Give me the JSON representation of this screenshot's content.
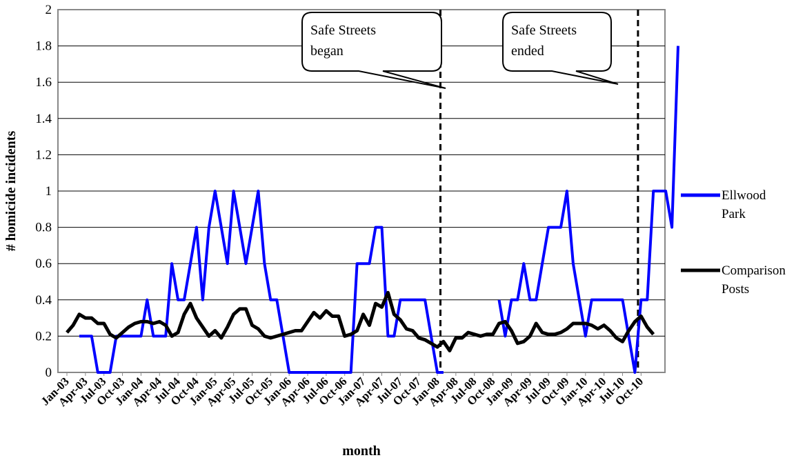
{
  "chart_data": {
    "type": "line",
    "title_fragment": "",
    "xlabel": "month",
    "ylabel": "# homicide incidents",
    "ylim": [
      0,
      2
    ],
    "yticks": [
      "0",
      "0.2",
      "0.4",
      "0.6",
      "0.8",
      "1",
      "1.2",
      "1.4",
      "1.6",
      "1.8",
      "2"
    ],
    "grid": "horizontal",
    "legend_position": "right",
    "x_tick_labels": [
      "Jan-03",
      "Apr-03",
      "Jul-03",
      "Oct-03",
      "Jan-04",
      "Apr-04",
      "Jul-04",
      "Oct-04",
      "Jan-05",
      "Apr-05",
      "Jul-05",
      "Oct-05",
      "Jan-06",
      "Apr-06",
      "Jul-06",
      "Oct-06",
      "Jan-07",
      "Apr-07",
      "Jul-07",
      "Oct-07",
      "Jan-08",
      "Apr-08",
      "Jul-08",
      "Oct-08",
      "Jan-09",
      "Apr-09",
      "Jul-09",
      "Oct-09",
      "Jan-10",
      "Apr-10",
      "Jul-10",
      "Oct-10"
    ],
    "series": [
      {
        "name": "Ellwood Park",
        "color": "#0000ff",
        "points": [
          [
            2,
            0.2
          ],
          [
            3,
            0.2
          ],
          [
            4,
            0.2
          ],
          [
            5,
            0
          ],
          [
            6,
            0
          ],
          [
            7,
            0
          ],
          [
            8,
            0.2
          ],
          [
            9,
            0.2
          ],
          [
            10,
            0.2
          ],
          [
            11,
            0.2
          ],
          [
            12,
            0.2
          ],
          [
            13,
            0.4
          ],
          [
            14,
            0.2
          ],
          [
            15,
            0.2
          ],
          [
            16,
            0.2
          ],
          [
            17,
            0.6
          ],
          [
            18,
            0.4
          ],
          [
            19,
            0.4
          ],
          [
            20,
            0.6
          ],
          [
            21,
            0.8
          ],
          [
            22,
            0.4
          ],
          [
            23,
            0.8
          ],
          [
            24,
            1.0
          ],
          [
            25,
            0.8
          ],
          [
            26,
            0.6
          ],
          [
            27,
            1.0
          ],
          [
            28,
            0.8
          ],
          [
            29,
            0.6
          ],
          [
            30,
            0.8
          ],
          [
            31,
            1.0
          ],
          [
            32,
            0.6
          ],
          [
            33,
            0.4
          ],
          [
            34,
            0.4
          ],
          [
            35,
            0.2
          ],
          [
            36,
            0
          ],
          [
            37,
            0
          ],
          [
            38,
            0
          ],
          [
            39,
            0
          ],
          [
            40,
            0
          ],
          [
            41,
            0
          ],
          [
            42,
            0
          ],
          [
            43,
            0
          ],
          [
            44,
            0
          ],
          [
            45,
            0
          ],
          [
            46,
            0
          ],
          [
            47,
            0.6
          ],
          [
            48,
            0.6
          ],
          [
            49,
            0.6
          ],
          [
            50,
            0.8
          ],
          [
            51,
            0.8
          ],
          [
            52,
            0.2
          ],
          [
            53,
            0.2
          ],
          [
            54,
            0.4
          ],
          [
            55,
            0.4
          ],
          [
            56,
            0.4
          ],
          [
            57,
            0.4
          ],
          [
            58,
            0.4
          ],
          [
            59,
            0.2
          ],
          [
            60,
            0
          ],
          [
            61,
            0
          ],
          [
            62,
            null
          ],
          [
            63,
            null
          ],
          [
            64,
            null
          ],
          [
            65,
            null
          ],
          [
            66,
            null
          ],
          [
            67,
            null
          ],
          [
            68,
            null
          ],
          [
            69,
            null
          ],
          [
            70,
            0.4
          ],
          [
            71,
            0.2
          ],
          [
            72,
            0.4
          ],
          [
            73,
            0.4
          ],
          [
            74,
            0.6
          ],
          [
            75,
            0.4
          ],
          [
            76,
            0.4
          ],
          [
            77,
            0.6
          ],
          [
            78,
            0.8
          ],
          [
            79,
            0.8
          ],
          [
            80,
            0.8
          ],
          [
            81,
            1.0
          ],
          [
            82,
            0.6
          ],
          [
            83,
            0.4
          ],
          [
            84,
            0.2
          ],
          [
            85,
            0.4
          ],
          [
            86,
            0.4
          ],
          [
            87,
            0.4
          ],
          [
            88,
            0.4
          ],
          [
            89,
            0.4
          ],
          [
            90,
            0.4
          ],
          [
            91,
            0.2
          ],
          [
            92,
            0
          ],
          [
            93,
            0.4
          ],
          [
            94,
            0.4
          ],
          [
            95,
            1.0
          ],
          [
            96,
            1.0
          ],
          [
            97,
            1.0
          ],
          [
            98,
            0.8
          ],
          [
            99,
            1.8
          ]
        ]
      },
      {
        "name": "Comparison Posts",
        "color": "#000000",
        "points": [
          [
            0,
            0.22
          ],
          [
            1,
            0.26
          ],
          [
            2,
            0.32
          ],
          [
            3,
            0.3
          ],
          [
            4,
            0.3
          ],
          [
            5,
            0.27
          ],
          [
            6,
            0.27
          ],
          [
            7,
            0.21
          ],
          [
            8,
            0.19
          ],
          [
            9,
            0.22
          ],
          [
            10,
            0.25
          ],
          [
            11,
            0.27
          ],
          [
            12,
            0.28
          ],
          [
            13,
            0.28
          ],
          [
            14,
            0.27
          ],
          [
            15,
            0.28
          ],
          [
            16,
            0.26
          ],
          [
            17,
            0.2
          ],
          [
            18,
            0.22
          ],
          [
            19,
            0.32
          ],
          [
            20,
            0.38
          ],
          [
            21,
            0.3
          ],
          [
            22,
            0.25
          ],
          [
            23,
            0.2
          ],
          [
            24,
            0.23
          ],
          [
            25,
            0.19
          ],
          [
            26,
            0.25
          ],
          [
            27,
            0.32
          ],
          [
            28,
            0.35
          ],
          [
            29,
            0.35
          ],
          [
            30,
            0.26
          ],
          [
            31,
            0.24
          ],
          [
            32,
            0.2
          ],
          [
            33,
            0.19
          ],
          [
            34,
            0.2
          ],
          [
            35,
            0.21
          ],
          [
            36,
            0.22
          ],
          [
            37,
            0.23
          ],
          [
            38,
            0.23
          ],
          [
            39,
            0.28
          ],
          [
            40,
            0.33
          ],
          [
            41,
            0.3
          ],
          [
            42,
            0.34
          ],
          [
            43,
            0.31
          ],
          [
            44,
            0.31
          ],
          [
            45,
            0.2
          ],
          [
            46,
            0.21
          ],
          [
            47,
            0.23
          ],
          [
            48,
            0.32
          ],
          [
            49,
            0.26
          ],
          [
            50,
            0.38
          ],
          [
            51,
            0.36
          ],
          [
            52,
            0.44
          ],
          [
            53,
            0.32
          ],
          [
            54,
            0.29
          ],
          [
            55,
            0.24
          ],
          [
            56,
            0.23
          ],
          [
            57,
            0.19
          ],
          [
            58,
            0.18
          ],
          [
            59,
            0.16
          ],
          [
            60,
            0.14
          ],
          [
            61,
            0.17
          ],
          [
            62,
            0.12
          ],
          [
            63,
            0.19
          ],
          [
            64,
            0.19
          ],
          [
            65,
            0.22
          ],
          [
            66,
            0.21
          ],
          [
            67,
            0.2
          ],
          [
            68,
            0.21
          ],
          [
            69,
            0.21
          ],
          [
            70,
            0.27
          ],
          [
            71,
            0.28
          ],
          [
            72,
            0.23
          ],
          [
            73,
            0.16
          ],
          [
            74,
            0.17
          ],
          [
            75,
            0.2
          ],
          [
            76,
            0.27
          ],
          [
            77,
            0.22
          ],
          [
            78,
            0.21
          ],
          [
            79,
            0.21
          ],
          [
            80,
            0.22
          ],
          [
            81,
            0.24
          ],
          [
            82,
            0.27
          ],
          [
            83,
            0.27
          ],
          [
            84,
            0.27
          ],
          [
            85,
            0.26
          ],
          [
            86,
            0.24
          ],
          [
            87,
            0.26
          ],
          [
            88,
            0.23
          ],
          [
            89,
            0.19
          ],
          [
            90,
            0.17
          ],
          [
            91,
            0.23
          ],
          [
            92,
            0.28
          ],
          [
            93,
            0.31
          ],
          [
            94,
            0.25
          ],
          [
            95,
            0.21
          ]
        ]
      }
    ],
    "vertical_markers": [
      {
        "x": 60.5,
        "label_lines": [
          "Safe Streets",
          "began"
        ]
      },
      {
        "x": 92.5,
        "label_lines": [
          "Safe Streets",
          "ended"
        ]
      }
    ],
    "legend": [
      {
        "lines": [
          "Ellwood",
          "Park"
        ],
        "color": "#0000ff"
      },
      {
        "lines": [
          "Comparison",
          "Posts"
        ],
        "color": "#000000"
      }
    ]
  }
}
